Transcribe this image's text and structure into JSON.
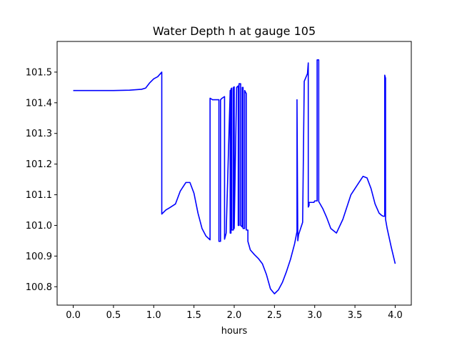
{
  "chart_data": {
    "type": "line",
    "title": "Water Depth h at gauge 105",
    "xlabel": "hours",
    "ylabel": "",
    "xlim": [
      -0.2,
      4.2
    ],
    "ylim": [
      100.74,
      101.6
    ],
    "xticks": [
      0.0,
      0.5,
      1.0,
      1.5,
      2.0,
      2.5,
      3.0,
      3.5,
      4.0
    ],
    "xtick_labels": [
      "0.0",
      "0.5",
      "1.0",
      "1.5",
      "2.0",
      "2.5",
      "3.0",
      "3.5",
      "4.0"
    ],
    "yticks": [
      100.8,
      100.9,
      101.0,
      101.1,
      101.2,
      101.3,
      101.4,
      101.5
    ],
    "ytick_labels": [
      "100.8",
      "100.9",
      "101.0",
      "101.1",
      "101.2",
      "101.3",
      "101.4",
      "101.5"
    ],
    "grid": false,
    "series": [
      {
        "color": "#0000ff",
        "x": [
          0.0,
          0.5,
          0.7,
          0.85,
          0.9,
          0.95,
          1.0,
          1.05,
          1.1,
          1.1,
          1.15,
          1.2,
          1.27,
          1.33,
          1.4,
          1.45,
          1.5,
          1.55,
          1.6,
          1.65,
          1.7,
          1.7,
          1.73,
          1.78,
          1.81,
          1.81,
          1.83,
          1.83,
          1.85,
          1.88,
          1.88,
          1.9,
          1.95,
          1.95,
          1.96,
          1.96,
          1.97,
          1.97,
          1.99,
          1.99,
          2.0,
          2.0,
          2.03,
          2.05,
          2.05,
          2.06,
          2.06,
          2.08,
          2.08,
          2.1,
          2.1,
          2.11,
          2.11,
          2.13,
          2.13,
          2.15,
          2.15,
          2.17,
          2.17,
          2.2,
          2.25,
          2.3,
          2.35,
          2.4,
          2.45,
          2.5,
          2.55,
          2.6,
          2.65,
          2.7,
          2.75,
          2.78,
          2.78,
          2.79,
          2.8,
          2.85,
          2.87,
          2.91,
          2.92,
          2.92,
          2.93,
          2.93,
          2.99,
          3.0,
          3.03,
          3.03,
          3.05,
          3.05,
          3.1,
          3.15,
          3.2,
          3.27,
          3.35,
          3.45,
          3.55,
          3.6,
          3.65,
          3.7,
          3.75,
          3.8,
          3.83,
          3.85,
          3.87,
          3.87,
          3.88,
          3.88,
          3.9,
          3.95,
          4.0
        ],
        "y": [
          101.44,
          101.44,
          101.441,
          101.444,
          101.448,
          101.465,
          101.478,
          101.485,
          101.5,
          101.037,
          101.05,
          101.058,
          101.07,
          101.112,
          101.14,
          101.14,
          101.105,
          101.04,
          100.99,
          100.965,
          100.953,
          101.415,
          101.41,
          101.41,
          101.41,
          100.948,
          100.948,
          101.41,
          101.415,
          101.42,
          100.955,
          100.975,
          101.44,
          100.975,
          100.975,
          101.445,
          101.448,
          100.985,
          100.985,
          101.45,
          101.452,
          100.99,
          101.45,
          101.455,
          101.0,
          101.0,
          101.462,
          101.462,
          101.0,
          100.995,
          101.45,
          101.45,
          100.99,
          100.99,
          101.44,
          101.43,
          100.985,
          100.985,
          100.948,
          100.92,
          100.905,
          100.892,
          100.875,
          100.84,
          100.793,
          100.777,
          100.79,
          100.815,
          100.85,
          100.89,
          100.94,
          100.98,
          101.41,
          100.95,
          100.97,
          101.01,
          101.47,
          101.495,
          101.53,
          101.06,
          101.065,
          101.075,
          101.075,
          101.08,
          101.08,
          101.54,
          101.54,
          101.078,
          101.055,
          101.025,
          100.99,
          100.975,
          101.02,
          101.1,
          101.14,
          101.16,
          101.155,
          101.12,
          101.07,
          101.04,
          101.033,
          101.03,
          101.03,
          101.49,
          101.48,
          101.02,
          100.99,
          100.93,
          100.875
        ]
      }
    ]
  }
}
